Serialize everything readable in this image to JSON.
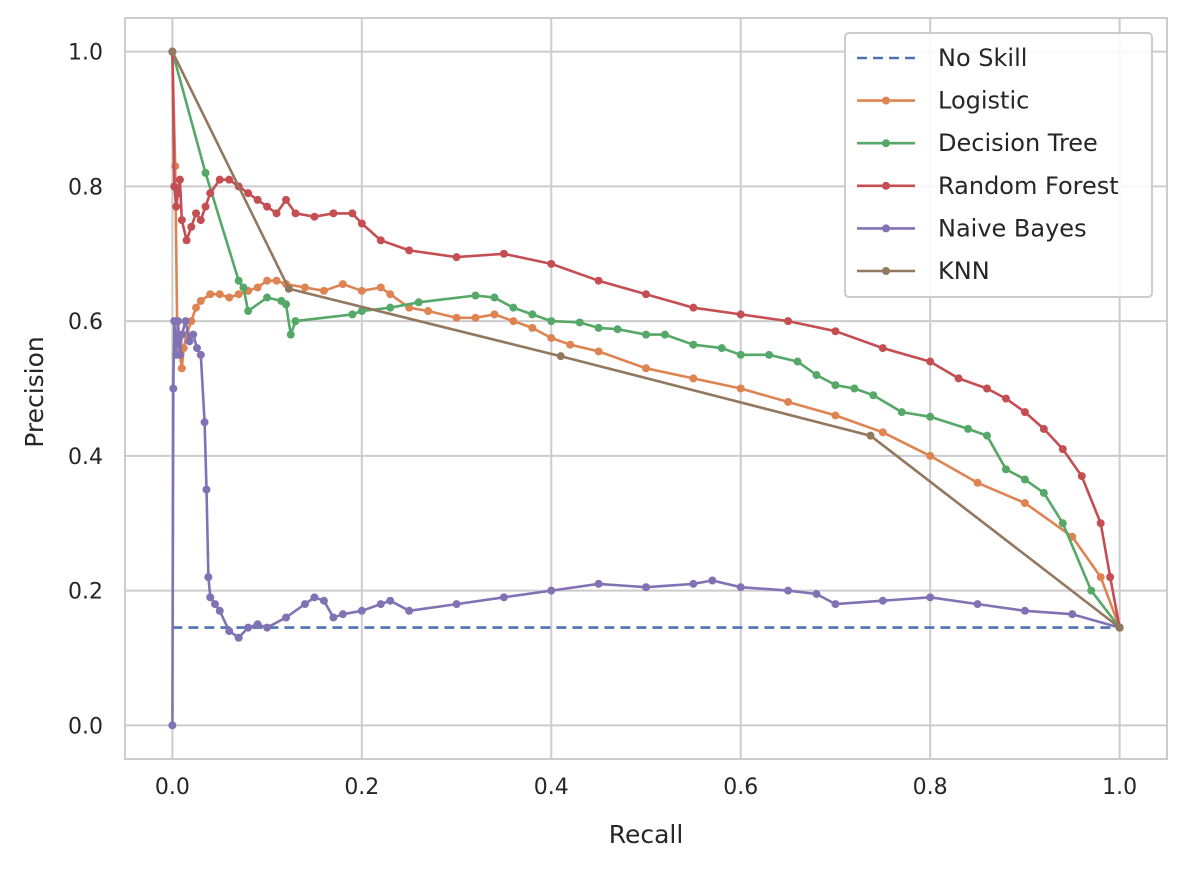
{
  "chart_data": {
    "type": "line",
    "title": "",
    "xlabel": "Recall",
    "ylabel": "Precision",
    "xlim": [
      -0.05,
      1.05
    ],
    "ylim": [
      -0.05,
      1.05
    ],
    "xticks": [
      0.0,
      0.2,
      0.4,
      0.6,
      0.8,
      1.0
    ],
    "yticks": [
      0.0,
      0.2,
      0.4,
      0.6,
      0.8,
      1.0
    ],
    "xtick_labels": [
      "0.0",
      "0.2",
      "0.4",
      "0.6",
      "0.8",
      "1.0"
    ],
    "ytick_labels": [
      "0.0",
      "0.2",
      "0.4",
      "0.6",
      "0.8",
      "1.0"
    ],
    "grid": true,
    "legend_position": "top-right",
    "series": [
      {
        "name": "No Skill",
        "color": "#4c72b0",
        "style": "dashed",
        "markers": false,
        "x": [
          0.0,
          1.0
        ],
        "y": [
          0.145,
          0.145
        ]
      },
      {
        "name": "Logistic",
        "color": "#dd8452",
        "style": "solid",
        "markers": true,
        "x": [
          0.0,
          0.003,
          0.005,
          0.008,
          0.01,
          0.012,
          0.015,
          0.02,
          0.025,
          0.03,
          0.04,
          0.05,
          0.06,
          0.07,
          0.08,
          0.09,
          0.1,
          0.11,
          0.12,
          0.14,
          0.16,
          0.18,
          0.2,
          0.22,
          0.23,
          0.25,
          0.27,
          0.3,
          0.32,
          0.34,
          0.36,
          0.38,
          0.4,
          0.42,
          0.45,
          0.5,
          0.55,
          0.6,
          0.65,
          0.7,
          0.75,
          0.8,
          0.85,
          0.9,
          0.95,
          0.98,
          1.0
        ],
        "y": [
          1.0,
          0.83,
          0.6,
          0.55,
          0.53,
          0.56,
          0.58,
          0.6,
          0.62,
          0.63,
          0.64,
          0.64,
          0.635,
          0.64,
          0.645,
          0.65,
          0.66,
          0.66,
          0.655,
          0.65,
          0.645,
          0.655,
          0.645,
          0.65,
          0.64,
          0.62,
          0.615,
          0.605,
          0.605,
          0.61,
          0.6,
          0.59,
          0.575,
          0.565,
          0.555,
          0.53,
          0.515,
          0.5,
          0.48,
          0.46,
          0.435,
          0.4,
          0.36,
          0.33,
          0.28,
          0.22,
          0.145
        ]
      },
      {
        "name": "Decision Tree",
        "color": "#55a868",
        "style": "solid",
        "markers": true,
        "x": [
          0.0,
          0.035,
          0.07,
          0.075,
          0.08,
          0.1,
          0.115,
          0.12,
          0.125,
          0.13,
          0.19,
          0.2,
          0.23,
          0.26,
          0.32,
          0.34,
          0.36,
          0.38,
          0.4,
          0.43,
          0.45,
          0.47,
          0.5,
          0.52,
          0.55,
          0.58,
          0.6,
          0.63,
          0.66,
          0.68,
          0.7,
          0.72,
          0.74,
          0.77,
          0.8,
          0.84,
          0.86,
          0.88,
          0.9,
          0.92,
          0.94,
          0.97,
          1.0
        ],
        "y": [
          1.0,
          0.82,
          0.66,
          0.65,
          0.615,
          0.635,
          0.63,
          0.625,
          0.58,
          0.6,
          0.61,
          0.615,
          0.62,
          0.628,
          0.638,
          0.635,
          0.62,
          0.61,
          0.6,
          0.598,
          0.59,
          0.588,
          0.58,
          0.58,
          0.565,
          0.56,
          0.55,
          0.55,
          0.54,
          0.52,
          0.505,
          0.5,
          0.49,
          0.465,
          0.458,
          0.44,
          0.43,
          0.38,
          0.365,
          0.345,
          0.3,
          0.2,
          0.145
        ]
      },
      {
        "name": "Random Forest",
        "color": "#c44e52",
        "style": "solid",
        "markers": true,
        "x": [
          0.0,
          0.002,
          0.004,
          0.006,
          0.008,
          0.01,
          0.015,
          0.02,
          0.025,
          0.03,
          0.035,
          0.04,
          0.05,
          0.06,
          0.07,
          0.08,
          0.09,
          0.1,
          0.11,
          0.12,
          0.13,
          0.15,
          0.17,
          0.19,
          0.2,
          0.22,
          0.25,
          0.3,
          0.35,
          0.4,
          0.45,
          0.5,
          0.55,
          0.6,
          0.65,
          0.7,
          0.75,
          0.8,
          0.83,
          0.86,
          0.88,
          0.9,
          0.92,
          0.94,
          0.96,
          0.98,
          0.99,
          1.0
        ],
        "y": [
          1.0,
          0.8,
          0.77,
          0.79,
          0.81,
          0.75,
          0.72,
          0.74,
          0.76,
          0.75,
          0.77,
          0.79,
          0.81,
          0.81,
          0.8,
          0.79,
          0.78,
          0.77,
          0.76,
          0.78,
          0.76,
          0.755,
          0.76,
          0.76,
          0.745,
          0.72,
          0.705,
          0.695,
          0.7,
          0.685,
          0.66,
          0.64,
          0.62,
          0.61,
          0.6,
          0.585,
          0.56,
          0.54,
          0.515,
          0.5,
          0.485,
          0.465,
          0.44,
          0.41,
          0.37,
          0.3,
          0.22,
          0.145
        ]
      },
      {
        "name": "Naive Bayes",
        "color": "#8172b3",
        "style": "solid",
        "markers": true,
        "x": [
          0.0,
          0.001,
          0.002,
          0.004,
          0.006,
          0.008,
          0.01,
          0.014,
          0.018,
          0.022,
          0.026,
          0.03,
          0.034,
          0.036,
          0.038,
          0.04,
          0.045,
          0.05,
          0.06,
          0.07,
          0.08,
          0.09,
          0.1,
          0.12,
          0.14,
          0.15,
          0.16,
          0.17,
          0.18,
          0.2,
          0.22,
          0.23,
          0.25,
          0.3,
          0.35,
          0.4,
          0.45,
          0.5,
          0.55,
          0.57,
          0.6,
          0.65,
          0.68,
          0.7,
          0.75,
          0.8,
          0.85,
          0.9,
          0.95,
          1.0
        ],
        "y": [
          0.0,
          0.5,
          0.6,
          0.55,
          0.6,
          0.55,
          0.58,
          0.6,
          0.57,
          0.58,
          0.56,
          0.55,
          0.45,
          0.35,
          0.22,
          0.19,
          0.18,
          0.17,
          0.14,
          0.13,
          0.145,
          0.15,
          0.145,
          0.16,
          0.18,
          0.19,
          0.185,
          0.16,
          0.165,
          0.17,
          0.18,
          0.185,
          0.17,
          0.18,
          0.19,
          0.2,
          0.21,
          0.205,
          0.21,
          0.215,
          0.205,
          0.2,
          0.195,
          0.18,
          0.185,
          0.19,
          0.18,
          0.17,
          0.165,
          0.145
        ]
      },
      {
        "name": "KNN",
        "color": "#937860",
        "style": "solid",
        "markers": true,
        "x": [
          0.0,
          0.123,
          0.41,
          0.737,
          1.0
        ],
        "y": [
          1.0,
          0.648,
          0.548,
          0.43,
          0.145
        ]
      }
    ]
  }
}
